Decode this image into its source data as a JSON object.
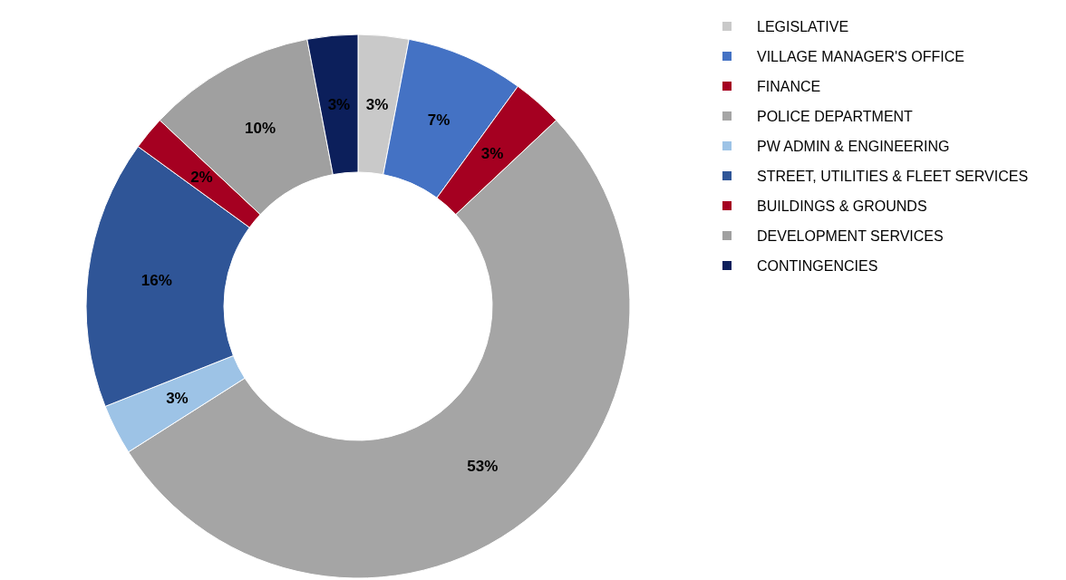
{
  "chart_data": {
    "type": "donut",
    "categories": [
      "LEGISLATIVE",
      "VILLAGE MANAGER'S OFFICE",
      "FINANCE",
      "POLICE DEPARTMENT",
      "PW ADMIN & ENGINEERING",
      "STREET, UTILITIES & FLEET SERVICES",
      "BUILDINGS & GROUNDS",
      "DEVELOPMENT SERVICES",
      "CONTINGENCIES"
    ],
    "values": [
      3,
      7,
      3,
      53,
      3,
      16,
      2,
      10,
      3
    ],
    "colors": [
      "#c9c9c9",
      "#4472c4",
      "#a50021",
      "#a5a5a5",
      "#9dc3e6",
      "#2f5597",
      "#a50021",
      "#a0a0a0",
      "#0c1f5b"
    ],
    "value_labels": [
      "3%",
      "7%",
      "3%",
      "53%",
      "3%",
      "16%",
      "2%",
      "10%",
      "3%"
    ],
    "legend": "right"
  }
}
